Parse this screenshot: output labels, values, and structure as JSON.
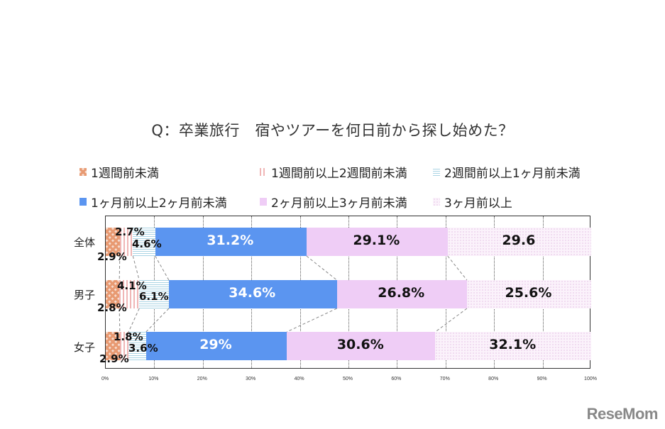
{
  "title": "Q：卒業旅行　宿やツアーを何日前から探し始めた？",
  "legend": [
    {
      "label": "1週間前未満",
      "color": "#e89a72",
      "pattern": "checker",
      "icon": "checker-swatch-icon"
    },
    {
      "label": "1週間前以上2週間前未満",
      "color": "#f0b6b6",
      "pattern": "vertical-stripes",
      "icon": "vertical-stripe-swatch-icon"
    },
    {
      "label": "2週間前以上1ヶ月前未満",
      "color": "#a9d4e4",
      "pattern": "horizontal-stripes",
      "icon": "horizontal-stripe-swatch-icon"
    },
    {
      "label": "1ヶ月前以上2ヶ月前未満",
      "color": "#5b95f0",
      "pattern": "solid",
      "icon": "solid-blue-swatch-icon"
    },
    {
      "label": "2ヶ月前以上3ヶ月前未満",
      "color": "#efcdf6",
      "pattern": "solid",
      "icon": "solid-pink-swatch-icon"
    },
    {
      "label": "3ヶ月前以上",
      "color": "#d9a9d9",
      "pattern": "dots",
      "icon": "dotted-swatch-icon"
    }
  ],
  "categories": [
    "全体",
    "男子",
    "女子"
  ],
  "labels": {
    "r0": [
      "2.9%",
      "2.7%",
      "4.6%",
      "31.2%",
      "29.1%",
      "29.6"
    ],
    "r1": [
      "2.8%",
      "4.1%",
      "6.1%",
      "34.6%",
      "26.8%",
      "25.6%"
    ],
    "r2": [
      "2.9%",
      "1.8%",
      "3.6%",
      "29%",
      "30.6%",
      "32.1%"
    ]
  },
  "x_ticks": [
    "0%",
    "10%",
    "20%",
    "30%",
    "40%",
    "50%",
    "60%",
    "70%",
    "80%",
    "90%",
    "100%"
  ],
  "brand": "ReseMom",
  "chart_data": {
    "type": "bar",
    "orientation": "horizontal",
    "stacked": true,
    "normalized": true,
    "title": "Q：卒業旅行　宿やツアーを何日前から探し始めた？",
    "categories": [
      "全体",
      "男子",
      "女子"
    ],
    "series": [
      {
        "name": "1週間前未満",
        "values": [
          2.9,
          2.8,
          2.9
        ]
      },
      {
        "name": "1週間前以上2週間前未満",
        "values": [
          2.7,
          4.1,
          1.8
        ]
      },
      {
        "name": "2週間前以上1ヶ月前未満",
        "values": [
          4.6,
          6.1,
          3.6
        ]
      },
      {
        "name": "1ヶ月前以上2ヶ月前未満",
        "values": [
          31.2,
          34.6,
          29.0
        ]
      },
      {
        "name": "2ヶ月前以上3ヶ月前未満",
        "values": [
          29.1,
          26.8,
          30.6
        ]
      },
      {
        "name": "3ヶ月前以上",
        "values": [
          29.6,
          25.6,
          32.1
        ]
      }
    ],
    "xlabel": "",
    "ylabel": "",
    "xlim": [
      0,
      100
    ],
    "x_tick_labels": [
      "0%",
      "10%",
      "20%",
      "30%",
      "40%",
      "50%",
      "60%",
      "70%",
      "80%",
      "90%",
      "100%"
    ],
    "grid": "vertical dotted",
    "legend_position": "top",
    "series_lines": true
  }
}
